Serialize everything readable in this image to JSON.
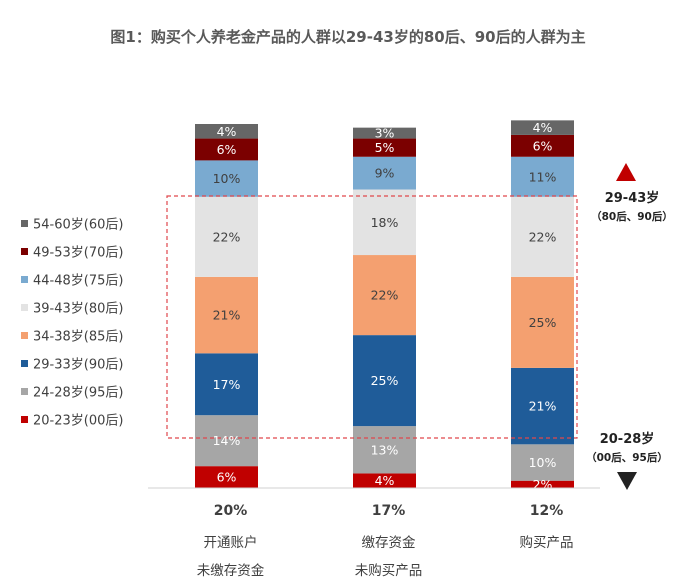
{
  "chart_data": {
    "type": "bar",
    "stacked": true,
    "title": "图1：购买个人养老金产品的人群以29-43岁的80后、90后的人群为主",
    "categories": [
      {
        "pct": "20%",
        "line1": "开通账户",
        "line2": "未缴存资金"
      },
      {
        "pct": "17%",
        "line1": "缴存资金",
        "line2": "未购买产品"
      },
      {
        "pct": "12%",
        "line1": "购买产品",
        "line2": ""
      }
    ],
    "series": [
      {
        "name": "20-23岁(00后)",
        "color": "#C00000",
        "values": [
          6,
          4,
          2
        ],
        "labels": [
          "6%",
          "4%",
          "2%"
        ]
      },
      {
        "name": "24-28岁(95后)",
        "color": "#A6A6A6",
        "values": [
          14,
          13,
          10
        ],
        "labels": [
          "14%",
          "13%",
          "10%"
        ]
      },
      {
        "name": "29-33岁(90后)",
        "color": "#1F5C99",
        "values": [
          17,
          25,
          21
        ],
        "labels": [
          "17%",
          "25%",
          "21%"
        ]
      },
      {
        "name": "34-38岁(85后)",
        "color": "#F4A070",
        "values": [
          21,
          22,
          25
        ],
        "labels": [
          "21%",
          "22%",
          "25%"
        ]
      },
      {
        "name": "39-43岁(80后)",
        "color": "#E3E3E3",
        "values": [
          22,
          18,
          22
        ],
        "labels": [
          "22%",
          "18%",
          "22%"
        ]
      },
      {
        "name": "44-48岁(75后)",
        "color": "#7AAAD0",
        "values": [
          10,
          9,
          11
        ],
        "labels": [
          "10%",
          "9%",
          "11%"
        ]
      },
      {
        "name": "49-53岁(70后)",
        "color": "#7B0000",
        "values": [
          6,
          5,
          6
        ],
        "labels": [
          "6%",
          "5%",
          "6%"
        ]
      },
      {
        "name": "54-60岁(60后)",
        "color": "#666666",
        "values": [
          4,
          3,
          4
        ],
        "labels": [
          "4%",
          "3%",
          "4%"
        ]
      }
    ],
    "legend_position": "left",
    "highlight_box": "29-43岁 band, dashed red",
    "annotations": {
      "up": {
        "line1": "29-43岁",
        "line2": "（80后、90后）",
        "color": "#C00000"
      },
      "down": {
        "line1": "20-28岁",
        "line2": "（00后、95后）",
        "color": "#222222"
      }
    }
  }
}
